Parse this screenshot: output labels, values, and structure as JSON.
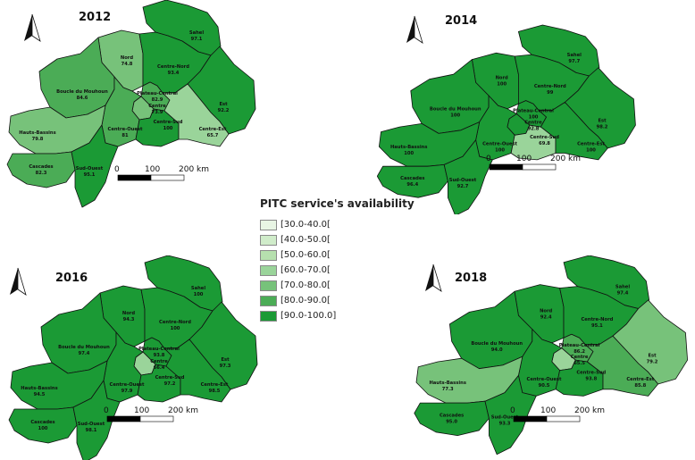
{
  "legend": {
    "title": "PITC service's availability",
    "classes": [
      {
        "label": "[30.0-40.0[",
        "color": "#e8f5e4"
      },
      {
        "label": "[40.0-50.0[",
        "color": "#d0ecca"
      },
      {
        "label": "[50.0-60.0[",
        "color": "#b6e0ae"
      },
      {
        "label": "[60.0-70.0[",
        "color": "#9ad49a"
      },
      {
        "label": "[70.0-80.0[",
        "color": "#77c27a"
      },
      {
        "label": "[80.0-90.0[",
        "color": "#4bac56"
      },
      {
        "label": "[90.0-100.0]",
        "color": "#1b9a35"
      }
    ]
  },
  "scale_bar": {
    "ticks": [
      "0",
      "100",
      "200 km"
    ]
  },
  "maps": [
    {
      "year": "2012",
      "regions": [
        {
          "name": "Sahel",
          "value": "97.1",
          "class": 6
        },
        {
          "name": "Nord",
          "value": "74.8",
          "class": 4
        },
        {
          "name": "Centre-Nord",
          "value": "93.4",
          "class": 6
        },
        {
          "name": "Boucle du Mouhoun",
          "value": "84.6",
          "class": 5
        },
        {
          "name": "Plateau-Central",
          "value": "82.9",
          "class": 5
        },
        {
          "name": "Centre",
          "value": "73.9",
          "class": 4
        },
        {
          "name": "Est",
          "value": "92.2",
          "class": 6
        },
        {
          "name": "Centre-Ouest",
          "value": "81",
          "class": 5
        },
        {
          "name": "Centre-Sud",
          "value": "100",
          "class": 6
        },
        {
          "name": "Centre-Est",
          "value": "65.7",
          "class": 3
        },
        {
          "name": "Hauts-Bassins",
          "value": "79.8",
          "class": 4
        },
        {
          "name": "Cascades",
          "value": "82.3",
          "class": 5
        },
        {
          "name": "Sud-Ouest",
          "value": "95.1",
          "class": 6
        }
      ]
    },
    {
      "year": "2014",
      "regions": [
        {
          "name": "Sahel",
          "value": "97.7",
          "class": 6
        },
        {
          "name": "Nord",
          "value": "100",
          "class": 6
        },
        {
          "name": "Centre-Nord",
          "value": "99",
          "class": 6
        },
        {
          "name": "Boucle du Mouhoun",
          "value": "100",
          "class": 6
        },
        {
          "name": "Plateau-Central",
          "value": "100",
          "class": 6
        },
        {
          "name": "Centre",
          "value": "92.8",
          "class": 6
        },
        {
          "name": "Est",
          "value": "98.2",
          "class": 6
        },
        {
          "name": "Centre-Ouest",
          "value": "100",
          "class": 6
        },
        {
          "name": "Centre-Sud",
          "value": "69.8",
          "class": 3
        },
        {
          "name": "Centre-Est",
          "value": "100",
          "class": 6
        },
        {
          "name": "Hauts-Bassins",
          "value": "100",
          "class": 6
        },
        {
          "name": "Cascades",
          "value": "96.4",
          "class": 6
        },
        {
          "name": "Sud-Ouest",
          "value": "92.7",
          "class": 6
        }
      ]
    },
    {
      "year": "2016",
      "regions": [
        {
          "name": "Sahel",
          "value": "100",
          "class": 6
        },
        {
          "name": "Nord",
          "value": "94.3",
          "class": 6
        },
        {
          "name": "Centre-Nord",
          "value": "100",
          "class": 6
        },
        {
          "name": "Boucle du Mouhoun",
          "value": "97.4",
          "class": 6
        },
        {
          "name": "Plateau-Central",
          "value": "93.8",
          "class": 6
        },
        {
          "name": "Centre",
          "value": "66.4",
          "class": 3
        },
        {
          "name": "Est",
          "value": "97.3",
          "class": 6
        },
        {
          "name": "Centre-Ouest",
          "value": "97.9",
          "class": 6
        },
        {
          "name": "Centre-Sud",
          "value": "97.2",
          "class": 6
        },
        {
          "name": "Centre-Est",
          "value": "98.5",
          "class": 6
        },
        {
          "name": "Hauts-Bassins",
          "value": "94.5",
          "class": 6
        },
        {
          "name": "Cascades",
          "value": "100",
          "class": 6
        },
        {
          "name": "Sud-Ouest",
          "value": "98.1",
          "class": 6
        }
      ]
    },
    {
      "year": "2018",
      "regions": [
        {
          "name": "Sahel",
          "value": "97.4",
          "class": 6
        },
        {
          "name": "Nord",
          "value": "92.4",
          "class": 6
        },
        {
          "name": "Centre-Nord",
          "value": "95.1",
          "class": 6
        },
        {
          "name": "Boucle du Mouhoun",
          "value": "94.0",
          "class": 6
        },
        {
          "name": "Plateau-Central",
          "value": "86.2",
          "class": 5
        },
        {
          "name": "Centre",
          "value": "65.5",
          "class": 3
        },
        {
          "name": "Est",
          "value": "79.2",
          "class": 4
        },
        {
          "name": "Centre-Ouest",
          "value": "90.5",
          "class": 6
        },
        {
          "name": "Centre-Sud",
          "value": "93.8",
          "class": 6
        },
        {
          "name": "Centre-Est",
          "value": "85.8",
          "class": 5
        },
        {
          "name": "Hauts-Bassins",
          "value": "77.3",
          "class": 4
        },
        {
          "name": "Cascades",
          "value": "95.0",
          "class": 6
        },
        {
          "name": "Sud-Ouest",
          "value": "93.3",
          "class": 6
        }
      ]
    }
  ]
}
